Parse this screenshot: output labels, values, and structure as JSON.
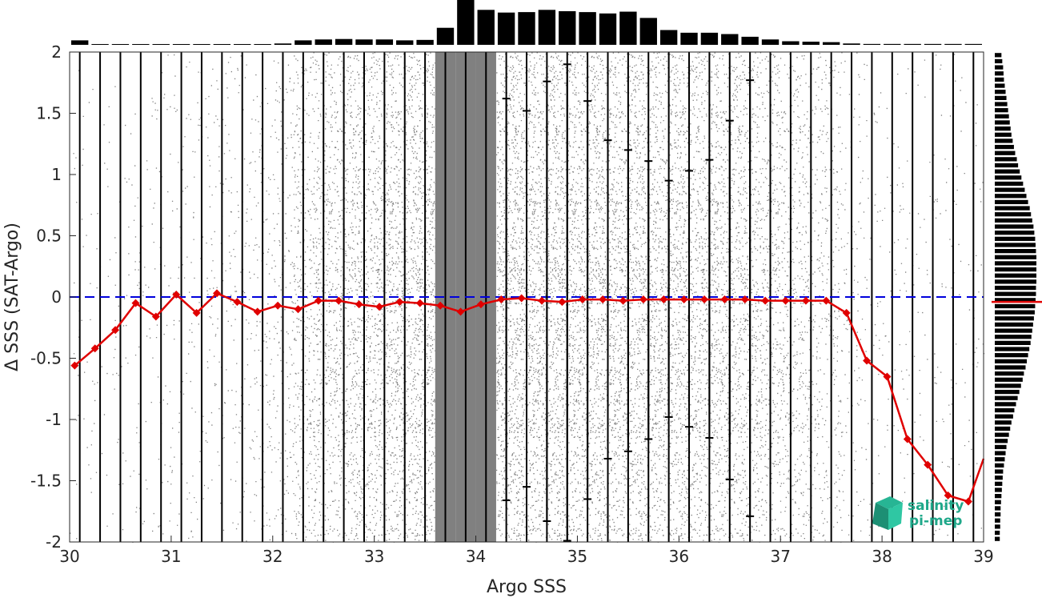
{
  "chart_data": {
    "type": "scatter",
    "title": "",
    "xlabel": "Argo SSS",
    "ylabel": "Δ SSS (SAT-Argo)",
    "xlim": [
      30,
      39
    ],
    "ylim": [
      -2,
      2
    ],
    "xticks": [
      "30",
      "31",
      "32",
      "33",
      "34",
      "35",
      "36",
      "37",
      "38",
      "39"
    ],
    "yticks": [
      "2",
      "1.5",
      "1",
      "0.5",
      "0",
      "-0.5",
      "-1",
      "-1.5",
      "-2"
    ],
    "zero_line": {
      "y": 0,
      "style": "dashed",
      "color": "#0000dd"
    },
    "bin_centers": [
      30.1,
      30.3,
      30.5,
      30.7,
      30.9,
      31.1,
      31.3,
      31.5,
      31.7,
      31.9,
      32.1,
      32.3,
      32.5,
      32.7,
      32.9,
      33.1,
      33.3,
      33.5,
      33.7,
      33.9,
      34.1,
      34.3,
      34.5,
      34.7,
      34.9,
      35.1,
      35.3,
      35.5,
      35.7,
      35.9,
      36.1,
      36.3,
      36.5,
      36.7,
      36.9,
      37.1,
      37.3,
      37.5,
      37.7,
      37.9,
      38.1,
      38.3,
      38.5,
      38.7,
      38.9
    ],
    "series": [
      {
        "kind": "median_line",
        "color": "#e00000",
        "x": [
          30.05,
          30.25,
          30.45,
          30.65,
          30.85,
          31.05,
          31.25,
          31.45,
          31.65,
          31.85,
          32.05,
          32.25,
          32.45,
          32.65,
          32.85,
          33.05,
          33.25,
          33.45,
          33.65,
          33.85,
          34.05,
          34.25,
          34.45,
          34.65,
          34.85,
          35.05,
          35.25,
          35.45,
          35.65,
          35.85,
          36.05,
          36.25,
          36.45,
          36.65,
          36.85,
          37.05,
          37.25,
          37.45,
          37.65,
          37.85,
          38.05,
          38.25,
          38.45,
          38.65,
          38.85,
          39.0
        ],
        "y": [
          -0.56,
          -0.42,
          -0.27,
          -0.05,
          -0.16,
          0.02,
          -0.13,
          0.03,
          -0.04,
          -0.12,
          -0.07,
          -0.1,
          -0.03,
          -0.03,
          -0.06,
          -0.08,
          -0.04,
          -0.05,
          -0.07,
          -0.12,
          -0.06,
          -0.02,
          -0.01,
          -0.03,
          -0.04,
          -0.02,
          -0.02,
          -0.03,
          -0.02,
          -0.02,
          -0.02,
          -0.02,
          -0.02,
          -0.02,
          -0.03,
          -0.03,
          -0.03,
          -0.03,
          -0.13,
          -0.52,
          -0.65,
          -1.16,
          -1.37,
          -1.62,
          -1.67,
          -1.32
        ]
      },
      {
        "kind": "error_bars",
        "color": "#000000",
        "x": [
          34.3,
          34.5,
          34.7,
          34.9,
          35.1,
          35.3,
          35.5,
          35.7,
          35.9,
          36.1,
          36.3,
          36.5,
          36.7
        ],
        "upper": [
          1.62,
          1.52,
          1.76,
          1.9,
          1.6,
          1.28,
          1.2,
          1.11,
          0.95,
          1.03,
          1.12,
          1.44,
          1.77
        ],
        "lower": [
          -1.66,
          -1.55,
          -1.83,
          -1.99,
          -1.65,
          -1.32,
          -1.26,
          -1.16,
          -0.98,
          -1.06,
          -1.15,
          -1.49,
          -1.79
        ]
      }
    ],
    "scatter_density": {
      "x": [
        30.1,
        30.3,
        30.5,
        30.7,
        30.9,
        31.1,
        31.3,
        31.5,
        31.7,
        31.9,
        32.1,
        32.3,
        32.5,
        32.7,
        32.9,
        33.1,
        33.3,
        33.5,
        33.7,
        33.9,
        34.1,
        34.3,
        34.5,
        34.7,
        34.9,
        35.1,
        35.3,
        35.5,
        35.7,
        35.9,
        36.1,
        36.3,
        36.5,
        36.7,
        36.9,
        37.1,
        37.3,
        37.5,
        37.7,
        37.9,
        38.1,
        38.3,
        38.5,
        38.7,
        38.9
      ],
      "relative_density": [
        0.04,
        0.04,
        0.05,
        0.06,
        0.07,
        0.08,
        0.09,
        0.1,
        0.12,
        0.16,
        0.22,
        0.45,
        0.55,
        0.62,
        0.68,
        0.72,
        0.78,
        0.85,
        1.0,
        1.0,
        1.0,
        0.95,
        0.92,
        0.9,
        0.9,
        0.88,
        0.86,
        0.84,
        0.82,
        0.8,
        0.78,
        0.75,
        0.7,
        0.65,
        0.55,
        0.45,
        0.35,
        0.3,
        0.12,
        0.08,
        0.06,
        0.05,
        0.05,
        0.05,
        0.05
      ],
      "color": "#808080"
    },
    "top_histogram": {
      "x": [
        30.1,
        30.3,
        30.5,
        30.7,
        30.9,
        31.1,
        31.3,
        31.5,
        31.7,
        31.9,
        32.1,
        32.3,
        32.5,
        32.7,
        32.9,
        33.1,
        33.3,
        33.5,
        33.7,
        33.9,
        34.1,
        34.3,
        34.5,
        34.7,
        34.9,
        35.1,
        35.3,
        35.5,
        35.7,
        35.9,
        36.1,
        36.3,
        36.5,
        36.7,
        36.9,
        37.1,
        37.3,
        37.5,
        37.7,
        37.9,
        38.1,
        38.3,
        38.5,
        38.7,
        38.9
      ],
      "values": [
        0.1,
        0.0,
        0.0,
        0.0,
        0.0,
        0.0,
        0.01,
        0.01,
        0.01,
        0.01,
        0.03,
        0.1,
        0.12,
        0.13,
        0.12,
        0.12,
        0.1,
        0.11,
        0.38,
        1.0,
        0.78,
        0.72,
        0.73,
        0.78,
        0.75,
        0.73,
        0.7,
        0.74,
        0.6,
        0.33,
        0.27,
        0.27,
        0.24,
        0.18,
        0.12,
        0.08,
        0.07,
        0.06,
        0.03,
        0.02,
        0.02,
        0.02,
        0.02,
        0.02,
        0.02
      ],
      "color": "#000000"
    },
    "right_histogram": {
      "y": [
        1.975,
        1.925,
        1.875,
        1.825,
        1.775,
        1.725,
        1.675,
        1.625,
        1.575,
        1.525,
        1.475,
        1.425,
        1.375,
        1.325,
        1.275,
        1.225,
        1.175,
        1.125,
        1.075,
        1.025,
        0.975,
        0.925,
        0.875,
        0.825,
        0.775,
        0.725,
        0.675,
        0.625,
        0.575,
        0.525,
        0.475,
        0.425,
        0.375,
        0.325,
        0.275,
        0.225,
        0.175,
        0.125,
        0.075,
        0.025,
        -0.025,
        -0.075,
        -0.125,
        -0.175,
        -0.225,
        -0.275,
        -0.325,
        -0.375,
        -0.425,
        -0.475,
        -0.525,
        -0.575,
        -0.625,
        -0.675,
        -0.725,
        -0.775,
        -0.825,
        -0.875,
        -0.925,
        -0.975,
        -1.025,
        -1.075,
        -1.125,
        -1.175,
        -1.225,
        -1.275,
        -1.325,
        -1.375,
        -1.425,
        -1.475,
        -1.525,
        -1.575,
        -1.625,
        -1.675,
        -1.725,
        -1.775,
        -1.825,
        -1.875,
        -1.925,
        -1.975
      ],
      "values": [
        0.16,
        0.18,
        0.2,
        0.21,
        0.22,
        0.24,
        0.26,
        0.28,
        0.3,
        0.32,
        0.34,
        0.36,
        0.38,
        0.4,
        0.43,
        0.46,
        0.49,
        0.53,
        0.56,
        0.6,
        0.64,
        0.68,
        0.72,
        0.76,
        0.8,
        0.84,
        0.87,
        0.9,
        0.93,
        0.95,
        0.97,
        0.98,
        0.99,
        1.0,
        1.0,
        1.0,
        1.0,
        1.0,
        0.99,
        0.99,
        0.98,
        0.97,
        0.96,
        0.94,
        0.92,
        0.9,
        0.88,
        0.86,
        0.83,
        0.8,
        0.77,
        0.74,
        0.7,
        0.67,
        0.63,
        0.59,
        0.55,
        0.51,
        0.47,
        0.44,
        0.4,
        0.37,
        0.34,
        0.31,
        0.28,
        0.26,
        0.24,
        0.22,
        0.2,
        0.19,
        0.18,
        0.17,
        0.16,
        0.15,
        0.14,
        0.14,
        0.13,
        0.13,
        0.12,
        0.12
      ],
      "median_marker_y": -0.04,
      "median_marker_color": "#e00000",
      "color": "#000000"
    },
    "logo": {
      "line1": "salinity",
      "line2": "pi-mep",
      "color": "#1fa88a"
    },
    "grid": false,
    "legend": "none"
  }
}
